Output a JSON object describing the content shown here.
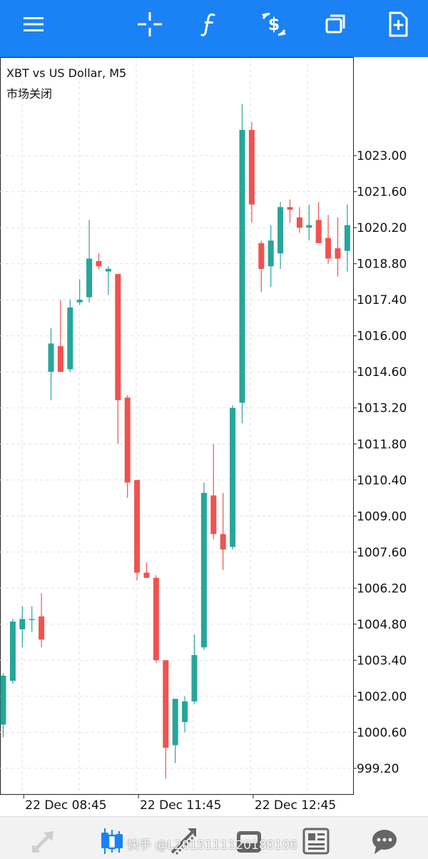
{
  "toolbar": {
    "menu_icon": "hamburger-menu-icon",
    "crosshair_icon": "crosshair-icon",
    "indicators_icon": "function-f-icon",
    "trade_icon": "dollar-exchange-icon",
    "windows_icon": "windows-stack-icon",
    "new_order_icon": "document-plus-icon"
  },
  "chart": {
    "title": "XBT vs US Dollar, M5",
    "status": "市场关闭"
  },
  "chart_data": {
    "type": "candlestick",
    "title": "XBT vs US Dollar, M5",
    "up_color": "#26a69a",
    "down_color": "#ef5350",
    "ylim": [
      998.2,
      1026.8
    ],
    "y_ticks": [
      "1023.00",
      "1021.60",
      "1020.20",
      "1018.80",
      "1017.40",
      "1016.00",
      "1014.60",
      "1013.20",
      "1011.80",
      "1010.40",
      "1009.00",
      "1007.60",
      "1006.20",
      "1004.80",
      "1003.40",
      "1002.00",
      "1000.60",
      "999.20"
    ],
    "x_ticks": [
      {
        "label": "22 Dec 08:45",
        "index": 2
      },
      {
        "label": "22 Dec 11:45",
        "index": 14
      },
      {
        "label": "22 Dec 12:45",
        "index": 26
      }
    ],
    "grid": true,
    "candles": [
      {
        "o": 1000.9,
        "h": 1002.9,
        "l": 1000.4,
        "c": 1002.8
      },
      {
        "o": 1002.6,
        "h": 1005.0,
        "l": 1002.5,
        "c": 1004.9
      },
      {
        "o": 1004.6,
        "h": 1005.5,
        "l": 1003.9,
        "c": 1005.0
      },
      {
        "o": 1005.0,
        "h": 1005.5,
        "l": 1004.5,
        "c": 1005.0
      },
      {
        "o": 1005.1,
        "h": 1006.0,
        "l": 1003.9,
        "c": 1004.2
      },
      {
        "o": 1014.6,
        "h": 1016.3,
        "l": 1013.5,
        "c": 1015.7
      },
      {
        "o": 1015.6,
        "h": 1017.4,
        "l": 1014.6,
        "c": 1014.6
      },
      {
        "o": 1014.7,
        "h": 1017.4,
        "l": 1014.6,
        "c": 1017.1
      },
      {
        "o": 1017.3,
        "h": 1018.2,
        "l": 1017.2,
        "c": 1017.4
      },
      {
        "o": 1017.5,
        "h": 1020.5,
        "l": 1017.3,
        "c": 1019.0
      },
      {
        "o": 1018.9,
        "h": 1019.2,
        "l": 1018.6,
        "c": 1018.7
      },
      {
        "o": 1018.5,
        "h": 1018.7,
        "l": 1017.6,
        "c": 1018.6
      },
      {
        "o": 1018.4,
        "h": 1018.4,
        "l": 1011.8,
        "c": 1013.5
      },
      {
        "o": 1013.6,
        "h": 1013.7,
        "l": 1009.7,
        "c": 1010.3
      },
      {
        "o": 1010.4,
        "h": 1010.4,
        "l": 1006.5,
        "c": 1006.8
      },
      {
        "o": 1006.8,
        "h": 1007.2,
        "l": 1006.6,
        "c": 1006.6
      },
      {
        "o": 1006.6,
        "h": 1006.7,
        "l": 1003.3,
        "c": 1003.4
      },
      {
        "o": 1003.4,
        "h": 1003.4,
        "l": 998.8,
        "c": 1000.0
      },
      {
        "o": 1000.1,
        "h": 1001.9,
        "l": 999.4,
        "c": 1001.9
      },
      {
        "o": 1001.0,
        "h": 1002.0,
        "l": 1000.6,
        "c": 1001.8
      },
      {
        "o": 1001.8,
        "h": 1004.4,
        "l": 1001.7,
        "c": 1003.6
      },
      {
        "o": 1003.9,
        "h": 1010.3,
        "l": 1003.8,
        "c": 1009.9
      },
      {
        "o": 1009.8,
        "h": 1011.8,
        "l": 1008.1,
        "c": 1008.3
      },
      {
        "o": 1008.3,
        "h": 1009.9,
        "l": 1006.9,
        "c": 1007.7
      },
      {
        "o": 1007.8,
        "h": 1013.3,
        "l": 1007.7,
        "c": 1013.2
      },
      {
        "o": 1013.4,
        "h": 1025.0,
        "l": 1012.6,
        "c": 1024.0
      },
      {
        "o": 1024.0,
        "h": 1024.3,
        "l": 1020.4,
        "c": 1021.1
      },
      {
        "o": 1019.6,
        "h": 1019.7,
        "l": 1017.7,
        "c": 1018.6
      },
      {
        "o": 1018.7,
        "h": 1020.3,
        "l": 1017.9,
        "c": 1019.7
      },
      {
        "o": 1019.2,
        "h": 1021.2,
        "l": 1018.6,
        "c": 1021.0
      },
      {
        "o": 1021.0,
        "h": 1021.3,
        "l": 1020.4,
        "c": 1020.9
      },
      {
        "o": 1020.6,
        "h": 1021.0,
        "l": 1020.0,
        "c": 1020.2
      },
      {
        "o": 1020.2,
        "h": 1021.1,
        "l": 1019.7,
        "c": 1020.3
      },
      {
        "o": 1020.5,
        "h": 1021.2,
        "l": 1019.6,
        "c": 1019.6
      },
      {
        "o": 1019.8,
        "h": 1020.7,
        "l": 1018.8,
        "c": 1019.0
      },
      {
        "o": 1019.4,
        "h": 1020.6,
        "l": 1018.3,
        "c": 1019.0
      },
      {
        "o": 1019.3,
        "h": 1021.1,
        "l": 1018.5,
        "c": 1020.3
      }
    ]
  },
  "bottom_nav": {
    "quotes_icon": "quotes-arrows-icon",
    "chart_icon": "candlestick-chart-icon",
    "trade_icon": "trade-trend-icon",
    "history_icon": "history-inbox-icon",
    "news_icon": "news-document-icon",
    "messages_icon": "chat-bubble-icon"
  },
  "watermark": "快手 @L2015111120180106"
}
